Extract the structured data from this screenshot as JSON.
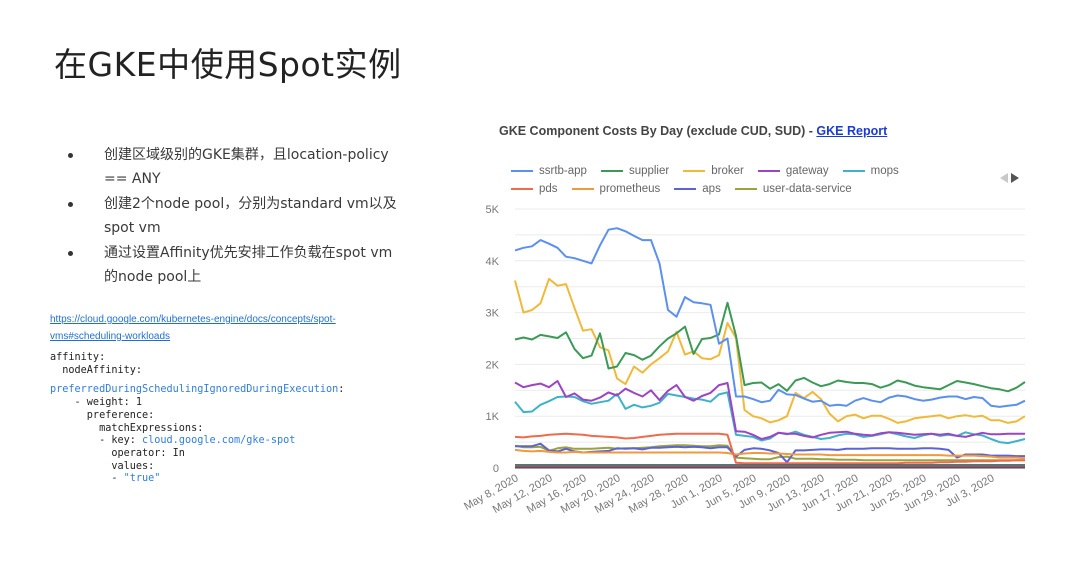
{
  "slide": {
    "title": "在GKE中使用Spot实例",
    "bullets": [
      "创建区域级别的GKE集群，且location-policy == ANY",
      "创建2个node pool，分别为standard vm以及spot vm",
      "通过设置Affinity优先安排工作负载在spot vm的node pool上"
    ],
    "doc_link": "https://cloud.google.com/kubernetes-engine/docs/concepts/spot-vms#scheduling-workloads",
    "code": {
      "l1": "affinity:",
      "l2": "  nodeAffinity:",
      "l3": "preferredDuringSchedulingIgnoredDuringExecution",
      "l3_suffix": ":",
      "l4": "    - weight: 1",
      "l5": "      preference:",
      "l6": "        matchExpressions:",
      "l7_prefix": "        - key: ",
      "l7_value": "cloud.google.com/gke-spot",
      "l8": "          operator: In",
      "l9": "          values:",
      "l10_prefix": "          - ",
      "l10_value": "\"true\""
    }
  },
  "chart": {
    "title_text": "GKE Component Costs By Day (exclude CUD, SUD) - ",
    "title_link": "GKE Report",
    "pager_prev": "previous-legend-page",
    "pager_next": "next-legend-page"
  },
  "chart_data": {
    "type": "line",
    "title": "GKE Component Costs By Day (exclude CUD, SUD)",
    "xlabel": "",
    "ylabel": "",
    "ylim": [
      0,
      5000
    ],
    "yticks": [
      "0",
      "1K",
      "2K",
      "3K",
      "4K",
      "5K"
    ],
    "grid": true,
    "legend_position": "top",
    "x_tick_labels": [
      "May 8, 2020",
      "May 12, 2020",
      "May 16, 2020",
      "May 20, 2020",
      "May 24, 2020",
      "May 28, 2020",
      "Jun 1, 2020",
      "Jun 5, 2020",
      "Jun 9, 2020",
      "Jun 13, 2020",
      "Jun 17, 2020",
      "Jun 21, 2020",
      "Jun 25, 2020",
      "Jun 29, 2020",
      "Jul 3, 2020"
    ],
    "x_start": "May 8, 2020",
    "x_days": 61,
    "series": [
      {
        "name": "ssrtb-app",
        "color": "#5b8ff0",
        "values": [
          4200,
          4250,
          4280,
          4400,
          4330,
          4250,
          4080,
          4050,
          4000,
          3950,
          4300,
          4600,
          4630,
          4570,
          4480,
          4400,
          4400,
          3950,
          3050,
          2920,
          3300,
          3200,
          3180,
          3150,
          2400,
          2500,
          1380,
          1380,
          1330,
          1270,
          1300,
          1510,
          1420,
          1410,
          1340,
          1280,
          1300,
          1200,
          1220,
          1200,
          1300,
          1350,
          1300,
          1270,
          1360,
          1400,
          1380,
          1330,
          1300,
          1320,
          1360,
          1380,
          1380,
          1330,
          1370,
          1350,
          1200,
          1180,
          1200,
          1220,
          1300
        ]
      },
      {
        "name": "supplier",
        "color": "#3c9a57",
        "values": [
          2480,
          2520,
          2480,
          2570,
          2540,
          2510,
          2620,
          2300,
          2120,
          2170,
          2600,
          1920,
          1960,
          2220,
          2180,
          2090,
          2170,
          2350,
          2500,
          2600,
          2730,
          2200,
          2490,
          2510,
          2580,
          3190,
          2550,
          1600,
          1640,
          1650,
          1530,
          1620,
          1490,
          1690,
          1740,
          1650,
          1580,
          1620,
          1690,
          1660,
          1640,
          1640,
          1620,
          1550,
          1600,
          1690,
          1650,
          1590,
          1560,
          1540,
          1520,
          1600,
          1680,
          1650,
          1620,
          1580,
          1540,
          1520,
          1480,
          1550,
          1660
        ]
      },
      {
        "name": "broker",
        "color": "#f0b93a",
        "values": [
          3620,
          3000,
          3050,
          3180,
          3650,
          3520,
          3550,
          3090,
          2650,
          2680,
          2330,
          2270,
          1730,
          1620,
          1960,
          1840,
          2000,
          2120,
          2250,
          2630,
          2190,
          2250,
          2120,
          2100,
          2180,
          2800,
          2510,
          1120,
          1000,
          960,
          880,
          920,
          1000,
          1450,
          1350,
          1470,
          1330,
          1050,
          900,
          1000,
          1030,
          960,
          1010,
          1010,
          950,
          870,
          900,
          960,
          980,
          1000,
          1020,
          960,
          1000,
          1020,
          990,
          1010,
          920,
          920,
          870,
          900,
          1000
        ]
      },
      {
        "name": "gateway",
        "color": "#9b45c5",
        "values": [
          1650,
          1560,
          1600,
          1630,
          1560,
          1680,
          1370,
          1440,
          1320,
          1300,
          1360,
          1460,
          1400,
          1530,
          1450,
          1380,
          1500,
          1310,
          1490,
          1600,
          1370,
          1300,
          1390,
          1450,
          1600,
          1640,
          710,
          700,
          640,
          560,
          600,
          680,
          660,
          660,
          620,
          590,
          640,
          680,
          690,
          700,
          660,
          640,
          630,
          670,
          690,
          680,
          660,
          640,
          650,
          660,
          640,
          660,
          620,
          600,
          640,
          680,
          650,
          650,
          660,
          660,
          660
        ]
      },
      {
        "name": "mops",
        "color": "#3eb2c9",
        "values": [
          1280,
          1080,
          1090,
          1220,
          1290,
          1370,
          1380,
          1370,
          1290,
          1240,
          1270,
          1300,
          1430,
          1140,
          1220,
          1170,
          1200,
          1260,
          1430,
          1400,
          1370,
          1340,
          1320,
          1280,
          1420,
          1460,
          640,
          620,
          600,
          530,
          570,
          680,
          650,
          700,
          640,
          600,
          560,
          580,
          630,
          660,
          650,
          600,
          620,
          650,
          690,
          650,
          610,
          580,
          630,
          660,
          620,
          640,
          620,
          690,
          650,
          630,
          560,
          500,
          480,
          520,
          560
        ]
      },
      {
        "name": "pds",
        "color": "#ee6b4d",
        "values": [
          600,
          590,
          610,
          620,
          640,
          650,
          660,
          650,
          640,
          620,
          610,
          600,
          590,
          570,
          580,
          600,
          620,
          640,
          650,
          660,
          660,
          660,
          660,
          660,
          660,
          640,
          100,
          90,
          90,
          90,
          90,
          90,
          90,
          90,
          90,
          90,
          90,
          90,
          90,
          90,
          90,
          90,
          90,
          90,
          90,
          90,
          100,
          100,
          100,
          100,
          110,
          110,
          120,
          120,
          130,
          130,
          130,
          140,
          140,
          150,
          150
        ]
      },
      {
        "name": "prometheus",
        "color": "#f2993e",
        "values": [
          350,
          330,
          320,
          330,
          310,
          300,
          300,
          310,
          300,
          300,
          300,
          300,
          300,
          300,
          300,
          300,
          300,
          300,
          300,
          300,
          300,
          300,
          300,
          300,
          300,
          290,
          260,
          280,
          290,
          290,
          280,
          280,
          270,
          260,
          260,
          260,
          260,
          250,
          250,
          250,
          250,
          250,
          250,
          250,
          250,
          250,
          250,
          250,
          250,
          250,
          250,
          240,
          240,
          240,
          240,
          230,
          220,
          200,
          200,
          200,
          190
        ]
      },
      {
        "name": "aps",
        "color": "#5b63d6",
        "values": [
          420,
          420,
          420,
          470,
          340,
          320,
          370,
          320,
          300,
          310,
          320,
          330,
          380,
          370,
          380,
          360,
          390,
          390,
          400,
          410,
          400,
          410,
          400,
          380,
          400,
          400,
          220,
          350,
          380,
          370,
          340,
          290,
          110,
          340,
          340,
          350,
          360,
          360,
          350,
          370,
          370,
          370,
          380,
          380,
          380,
          370,
          370,
          370,
          380,
          380,
          370,
          350,
          200,
          260,
          260,
          260,
          240,
          240,
          240,
          230,
          230
        ]
      },
      {
        "name": "user-data-service",
        "color": "#9aa33c",
        "values": [
          430,
          400,
          400,
          410,
          330,
          380,
          400,
          370,
          370,
          370,
          380,
          390,
          370,
          380,
          380,
          390,
          400,
          420,
          430,
          440,
          440,
          430,
          420,
          420,
          440,
          430,
          200,
          190,
          180,
          170,
          170,
          210,
          220,
          180,
          180,
          180,
          170,
          170,
          160,
          160,
          160,
          150,
          150,
          150,
          150,
          150,
          150,
          150,
          150,
          150,
          150,
          150,
          150,
          150,
          150,
          150,
          150,
          150,
          150,
          150,
          150
        ]
      }
    ]
  }
}
